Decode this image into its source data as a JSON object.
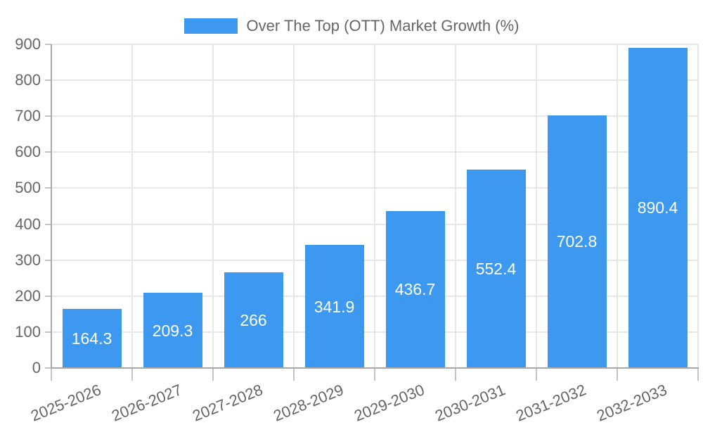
{
  "chart_data": {
    "type": "bar",
    "legend": "Over The Top (OTT) Market Growth (%)",
    "legend_position": "top",
    "categories": [
      "2025-2026",
      "2026-2027",
      "2027-2028",
      "2028-2029",
      "2029-2030",
      "2030-2031",
      "2031-2032",
      "2032-2033"
    ],
    "values": [
      164.3,
      209.3,
      266,
      341.9,
      436.7,
      552.4,
      702.8,
      890.4
    ],
    "title": "",
    "xlabel": "",
    "ylabel": "",
    "ylim": [
      0,
      900
    ],
    "yticks": [
      0,
      100,
      200,
      300,
      400,
      500,
      600,
      700,
      800,
      900
    ],
    "grid": true,
    "bar_color": "#3D99EF",
    "value_label_color": "#FFFFFF",
    "axis_text_color": "#666666",
    "grid_color": "#E7E7E7",
    "axis_line_color": "#A8A8A8",
    "tick_color": "#C4C4C4",
    "background_color": "#FFFFFF"
  }
}
